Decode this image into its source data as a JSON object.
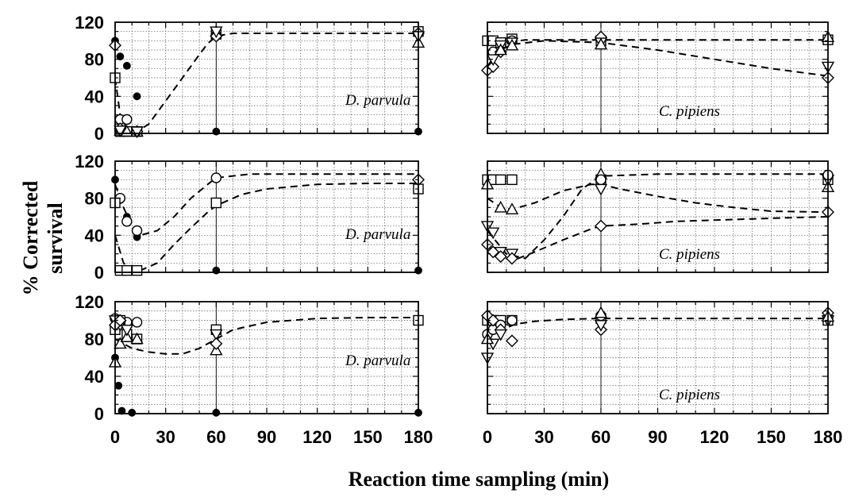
{
  "figure": {
    "ylabel_line1": "% Corrected",
    "ylabel_line2": "survival",
    "xlabel": "Reaction time sampling (min)",
    "x_ticks": [
      "0",
      "30",
      "60",
      "90",
      "120",
      "150",
      "180"
    ],
    "y_ticks": [
      "0",
      "40",
      "80",
      "120"
    ]
  },
  "chart_data": [
    {
      "type": "scatter",
      "species": "D. parvula",
      "row": 0,
      "col": 0,
      "xlim": [
        0,
        180
      ],
      "ylim": [
        0,
        120
      ],
      "grid": true,
      "series": [
        {
          "marker": "filled-circle",
          "x": [
            0,
            3,
            7,
            13,
            60,
            180
          ],
          "y": [
            100,
            83,
            73,
            40,
            2,
            2
          ]
        },
        {
          "marker": "open-circle",
          "x": [
            3,
            7
          ],
          "y": [
            15,
            15
          ]
        },
        {
          "marker": "open-square",
          "x": [
            0,
            3,
            7,
            13,
            60,
            180
          ],
          "y": [
            60,
            2,
            2,
            2,
            107,
            110
          ]
        },
        {
          "marker": "open-triangle-up",
          "x": [
            3,
            7,
            13,
            60,
            180
          ],
          "y": [
            3,
            2,
            2,
            110,
            98
          ]
        },
        {
          "marker": "open-diamond",
          "x": [
            0,
            3,
            13,
            60,
            180
          ],
          "y": [
            95,
            5,
            2,
            105,
            108
          ]
        },
        {
          "marker": "open-triangle-down",
          "x": [
            3,
            13,
            60,
            180
          ],
          "y": [
            3,
            2,
            110,
            105
          ]
        }
      ],
      "fits": [
        {
          "style": "dashed",
          "x": [
            0,
            3,
            7,
            10,
            13,
            20,
            30,
            40,
            50,
            55,
            60,
            70,
            90,
            120,
            150,
            180
          ],
          "y": [
            60,
            20,
            5,
            2,
            2,
            10,
            35,
            60,
            85,
            97,
            105,
            108,
            108,
            108,
            108,
            108
          ]
        }
      ]
    },
    {
      "type": "scatter",
      "species": "C. pipiens",
      "row": 0,
      "col": 1,
      "xlim": [
        0,
        180
      ],
      "ylim": [
        0,
        120
      ],
      "grid": true,
      "series": [
        {
          "marker": "open-square",
          "x": [
            0,
            3,
            7,
            13,
            60,
            180
          ],
          "y": [
            100,
            100,
            98,
            102,
            100,
            101
          ]
        },
        {
          "marker": "open-circle",
          "x": [
            3,
            13
          ],
          "y": [
            88,
            100
          ]
        },
        {
          "marker": "open-diamond",
          "x": [
            0,
            3,
            7,
            60,
            180
          ],
          "y": [
            68,
            72,
            88,
            104,
            60
          ]
        },
        {
          "marker": "open-triangle-down",
          "x": [
            3,
            7,
            13,
            60,
            180
          ],
          "y": [
            80,
            95,
            98,
            98,
            72
          ]
        },
        {
          "marker": "open-triangle-up",
          "x": [
            7,
            13,
            60,
            180
          ],
          "y": [
            90,
            95,
            96,
            104
          ]
        }
      ],
      "fits": [
        {
          "style": "dashed",
          "x": [
            0,
            5,
            10,
            20,
            40,
            60,
            120,
            180
          ],
          "y": [
            88,
            95,
            98,
            101,
            101,
            101,
            101,
            101
          ]
        },
        {
          "style": "dashed",
          "x": [
            0,
            5,
            13,
            30,
            60,
            90,
            120,
            150,
            180
          ],
          "y": [
            72,
            88,
            96,
            100,
            98,
            90,
            80,
            70,
            62
          ]
        }
      ]
    },
    {
      "type": "scatter",
      "species": "D. parvula",
      "row": 1,
      "col": 0,
      "xlim": [
        0,
        180
      ],
      "ylim": [
        0,
        120
      ],
      "grid": true,
      "series": [
        {
          "marker": "filled-circle",
          "x": [
            0,
            3,
            7,
            13,
            60,
            180
          ],
          "y": [
            100,
            78,
            60,
            38,
            2,
            2
          ]
        },
        {
          "marker": "open-circle",
          "x": [
            3,
            7,
            13,
            60
          ],
          "y": [
            80,
            55,
            45,
            102
          ]
        },
        {
          "marker": "open-square",
          "x": [
            0,
            3,
            7,
            13,
            60,
            180
          ],
          "y": [
            75,
            2,
            2,
            2,
            75,
            90
          ]
        },
        {
          "marker": "open-diamond",
          "x": [
            180
          ],
          "y": [
            100
          ]
        }
      ],
      "fits": [
        {
          "style": "dashed",
          "x": [
            0,
            5,
            10,
            15,
            25,
            35,
            45,
            55,
            60,
            80,
            120,
            180
          ],
          "y": [
            95,
            70,
            50,
            40,
            45,
            60,
            80,
            95,
            102,
            106,
            106,
            106
          ]
        },
        {
          "style": "dashed",
          "x": [
            0,
            5,
            10,
            15,
            25,
            35,
            45,
            55,
            60,
            75,
            90,
            120,
            150,
            180
          ],
          "y": [
            40,
            10,
            3,
            2,
            10,
            30,
            48,
            65,
            72,
            84,
            90,
            95,
            96,
            96
          ]
        }
      ]
    },
    {
      "type": "scatter",
      "species": "C. pipiens",
      "row": 1,
      "col": 1,
      "xlim": [
        0,
        180
      ],
      "ylim": [
        0,
        120
      ],
      "grid": true,
      "series": [
        {
          "marker": "open-square",
          "x": [
            0,
            3,
            7,
            13,
            60,
            180
          ],
          "y": [
            100,
            100,
            100,
            100,
            100,
            100
          ]
        },
        {
          "marker": "open-triangle-up",
          "x": [
            0,
            7,
            13,
            60,
            180
          ],
          "y": [
            95,
            70,
            68,
            106,
            92
          ]
        },
        {
          "marker": "open-triangle-down",
          "x": [
            0,
            3,
            7,
            13,
            60,
            180
          ],
          "y": [
            50,
            43,
            22,
            20,
            90,
            100
          ]
        },
        {
          "marker": "open-diamond",
          "x": [
            0,
            3,
            7,
            13,
            60,
            180
          ],
          "y": [
            30,
            22,
            17,
            15,
            50,
            65
          ]
        },
        {
          "marker": "open-circle",
          "x": [
            60,
            180
          ],
          "y": [
            100,
            105
          ]
        }
      ],
      "fits": [
        {
          "style": "dashed",
          "x": [
            0,
            10,
            20,
            30,
            40,
            50,
            60,
            90,
            120,
            150,
            180
          ],
          "y": [
            45,
            20,
            15,
            35,
            60,
            90,
            104,
            106,
            106,
            106,
            106
          ]
        },
        {
          "style": "dashed",
          "x": [
            0,
            7,
            13,
            25,
            40,
            55,
            60,
            70,
            90,
            110,
            130,
            150,
            180
          ],
          "y": [
            80,
            70,
            68,
            75,
            88,
            95,
            95,
            90,
            82,
            75,
            70,
            66,
            65
          ]
        },
        {
          "style": "dashed",
          "x": [
            0,
            5,
            10,
            15,
            25,
            40,
            55,
            60,
            80,
            100,
            130,
            160,
            180
          ],
          "y": [
            30,
            18,
            15,
            14,
            22,
            35,
            47,
            50,
            52,
            55,
            57,
            59,
            60
          ]
        }
      ]
    },
    {
      "type": "scatter",
      "species": "D. parvula",
      "row": 2,
      "col": 0,
      "xlim": [
        0,
        180
      ],
      "ylim": [
        0,
        120
      ],
      "grid": true,
      "series": [
        {
          "marker": "filled-circle",
          "x": [
            0,
            2,
            4,
            10,
            60,
            180
          ],
          "y": [
            60,
            30,
            3,
            1,
            1,
            1
          ]
        },
        {
          "marker": "open-circle",
          "x": [
            0,
            3,
            7,
            13
          ],
          "y": [
            102,
            100,
            98,
            98
          ]
        },
        {
          "marker": "open-square",
          "x": [
            0,
            3,
            7,
            13,
            60,
            180
          ],
          "y": [
            90,
            100,
            85,
            80,
            90,
            100
          ]
        },
        {
          "marker": "open-triangle-up",
          "x": [
            0,
            3,
            7,
            13,
            60
          ],
          "y": [
            55,
            75,
            82,
            80,
            68
          ]
        },
        {
          "marker": "open-triangle-down",
          "x": [
            0,
            3,
            7,
            60
          ],
          "y": [
            100,
            95,
            90,
            85
          ]
        },
        {
          "marker": "open-diamond",
          "x": [
            0,
            3,
            60
          ],
          "y": [
            95,
            100,
            75
          ]
        }
      ],
      "fits": [
        {
          "style": "dashed",
          "x": [
            0,
            10,
            20,
            30,
            40,
            50,
            60,
            70,
            90,
            120,
            150,
            180
          ],
          "y": [
            80,
            70,
            66,
            64,
            64,
            70,
            80,
            90,
            98,
            102,
            103,
            103
          ]
        }
      ]
    },
    {
      "type": "scatter",
      "species": "C. pipiens",
      "row": 2,
      "col": 1,
      "xlim": [
        0,
        180
      ],
      "ylim": [
        0,
        120
      ],
      "grid": true,
      "series": [
        {
          "marker": "open-square",
          "x": [
            0,
            3,
            7,
            13,
            60,
            180
          ],
          "y": [
            100,
            100,
            100,
            100,
            102,
            100
          ]
        },
        {
          "marker": "open-circle",
          "x": [
            0,
            3,
            7,
            13,
            60
          ],
          "y": [
            85,
            90,
            95,
            100,
            105
          ]
        },
        {
          "marker": "open-diamond",
          "x": [
            0,
            3,
            7,
            13,
            60,
            180
          ],
          "y": [
            105,
            100,
            90,
            78,
            90,
            108
          ]
        },
        {
          "marker": "open-triangle-down",
          "x": [
            0,
            3,
            7,
            60,
            180
          ],
          "y": [
            60,
            75,
            85,
            95,
            100
          ]
        },
        {
          "marker": "open-triangle-up",
          "x": [
            0,
            60,
            180
          ],
          "y": [
            80,
            108,
            104
          ]
        }
      ],
      "fits": [
        {
          "style": "dashed",
          "x": [
            0,
            5,
            10,
            15,
            25,
            40,
            60,
            90,
            120,
            150,
            180
          ],
          "y": [
            82,
            88,
            92,
            96,
            99,
            101,
            102,
            102,
            102,
            102,
            102
          ]
        }
      ]
    }
  ]
}
